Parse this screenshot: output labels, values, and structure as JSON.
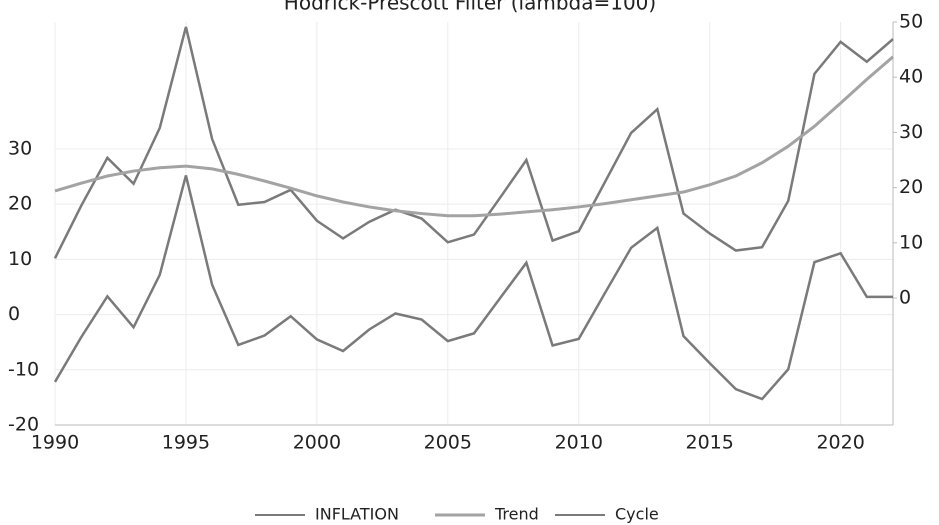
{
  "chart_data": {
    "type": "line",
    "title": "Hodrick-Prescott Filter (lambda=100)",
    "x": [
      1990,
      1991,
      1992,
      1993,
      1994,
      1995,
      1996,
      1997,
      1998,
      1999,
      2000,
      2001,
      2002,
      2003,
      2004,
      2005,
      2006,
      2007,
      2008,
      2009,
      2010,
      2011,
      2012,
      2013,
      2014,
      2015,
      2016,
      2017,
      2018,
      2019,
      2020,
      2021,
      2022
    ],
    "xlim": [
      1990,
      2022
    ],
    "xticks": [
      1990,
      1995,
      2000,
      2005,
      2010,
      2015,
      2020
    ],
    "ylim": [
      -20,
      53
    ],
    "yticks": [
      -20,
      -10,
      0,
      10,
      20,
      30
    ],
    "y2lim": [
      -23,
      50
    ],
    "y2ticks": [
      0,
      10,
      20,
      30,
      40,
      50
    ],
    "grid": true,
    "legend": "bottom",
    "series": [
      {
        "name": "INFLATION",
        "color": "#7a7a7a",
        "axis": "y2",
        "values": [
          7.2,
          16.7,
          25.4,
          20.7,
          30.8,
          49.1,
          28.8,
          16.9,
          17.4,
          19.6,
          14.0,
          10.8,
          13.8,
          16.0,
          14.4,
          10.1,
          11.5,
          18.2,
          25.0,
          10.4,
          12.1,
          21.0,
          29.9,
          34.2,
          15.3,
          11.7,
          8.6,
          9.2,
          17.6,
          40.6,
          46.4,
          42.8,
          46.9
        ]
      },
      {
        "name": "Trend",
        "color": "#a3a3a3",
        "axis": "y2",
        "values": [
          19.4,
          20.8,
          22.1,
          23.0,
          23.6,
          23.9,
          23.4,
          22.4,
          21.2,
          19.9,
          18.5,
          17.4,
          16.5,
          15.8,
          15.3,
          14.9,
          14.9,
          15.2,
          15.6,
          16.0,
          16.5,
          17.1,
          17.8,
          18.5,
          19.2,
          20.5,
          22.1,
          24.5,
          27.5,
          31.1,
          35.3,
          39.6,
          43.7
        ]
      },
      {
        "name": "Cycle",
        "color": "#7a7a7a",
        "values": [
          -12.2,
          -4.1,
          3.3,
          -2.3,
          7.2,
          25.2,
          5.4,
          -5.5,
          -3.8,
          -0.3,
          -4.5,
          -6.6,
          -2.7,
          0.2,
          -0.9,
          -4.8,
          -3.4,
          3.0,
          9.4,
          -5.6,
          -4.4,
          3.9,
          12.1,
          15.7,
          -3.9,
          -8.8,
          -13.5,
          -15.3,
          -9.9,
          9.5,
          11.1,
          3.2,
          3.2
        ]
      }
    ]
  }
}
